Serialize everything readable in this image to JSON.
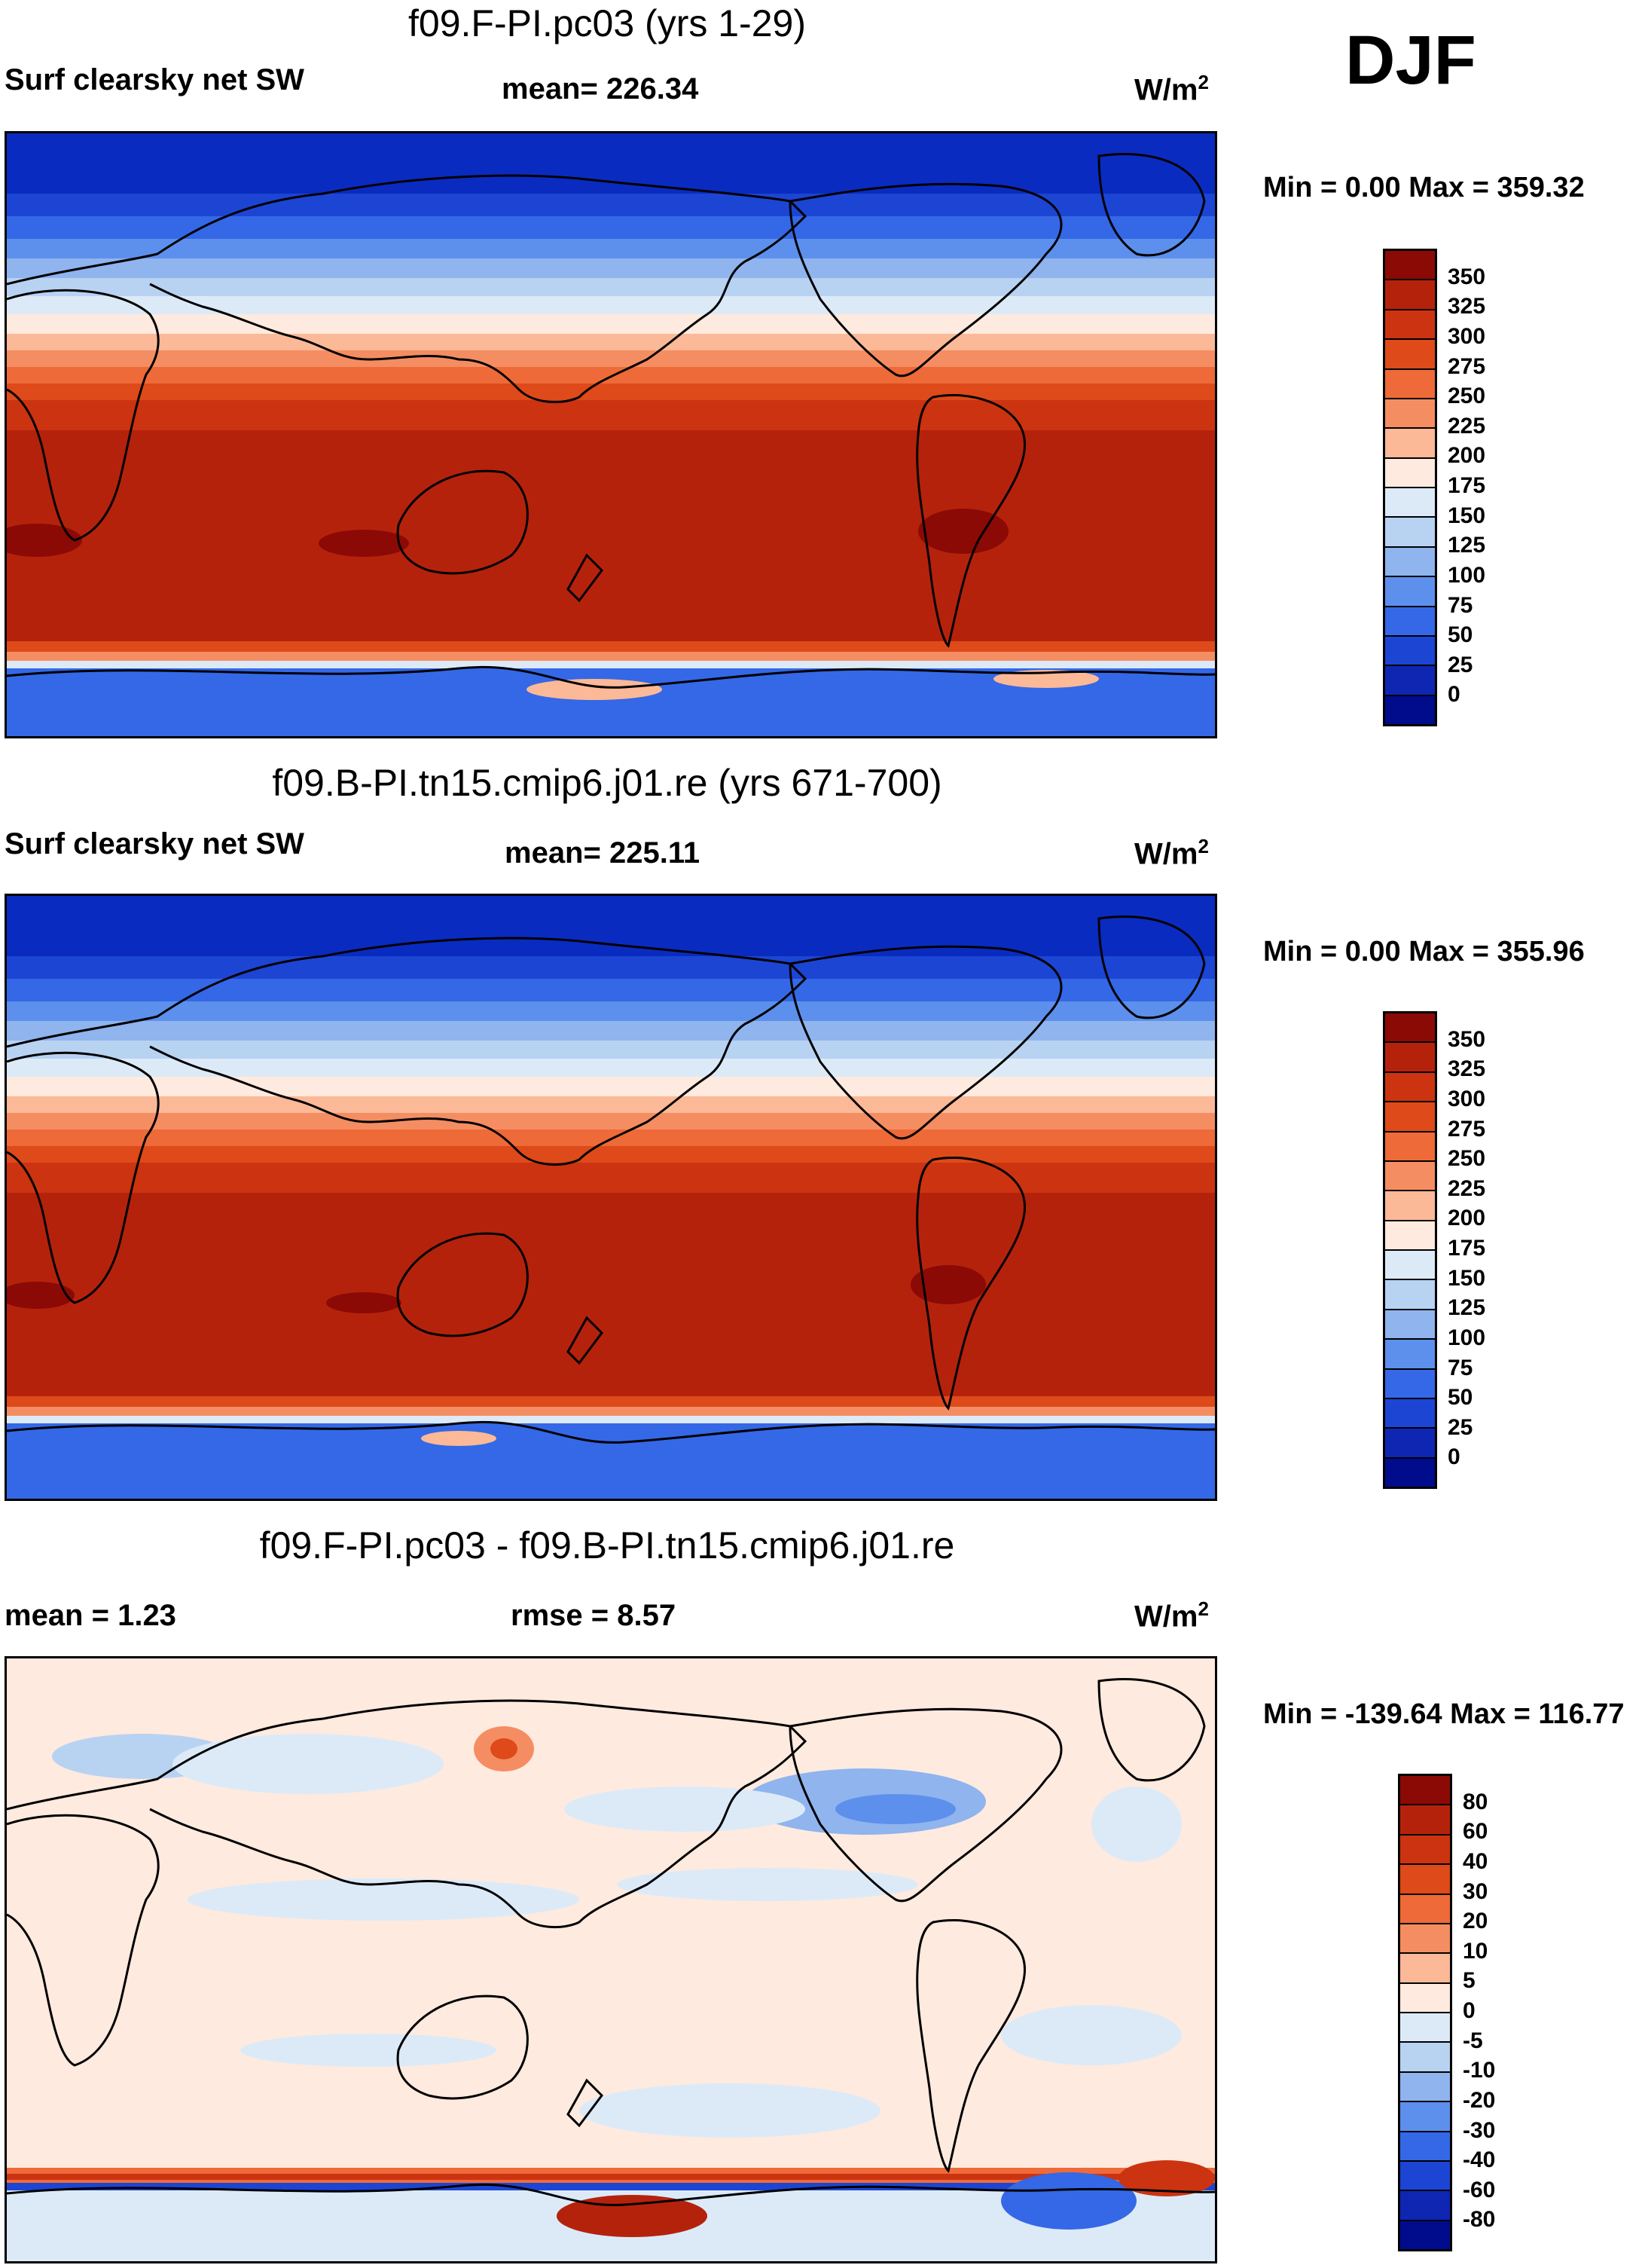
{
  "season": "DJF",
  "panels": [
    {
      "id": "ctrl",
      "title": "f09.F-PI.pc03 (yrs 1-29)",
      "field_label": "Surf clearsky net SW",
      "stat1": "mean= 226.34",
      "stat2": "",
      "units_base": "W/m",
      "units_sup": "2",
      "minmax": "Min =   0.00 Max = 359.32"
    },
    {
      "id": "test",
      "title": "f09.B-PI.tn15.cmip6.j01.re (yrs 671-700)",
      "field_label": "Surf clearsky net SW",
      "stat1": "mean= 225.11",
      "stat2": "",
      "units_base": "W/m",
      "units_sup": "2",
      "minmax": "Min =   0.00 Max = 355.96"
    },
    {
      "id": "diff",
      "title": "f09.F-PI.pc03 - f09.B-PI.tn15.cmip6.j01.re",
      "field_label": "",
      "stat1": "mean =   1.23",
      "stat2": "rmse =   8.57",
      "units_base": "W/m",
      "units_sup": "2",
      "minmax": "Min = -139.64 Max = 116.77"
    }
  ],
  "colorbars": {
    "abs": {
      "labels": [
        "350",
        "325",
        "300",
        "275",
        "250",
        "225",
        "200",
        "175",
        "150",
        "125",
        "100",
        "75",
        "50",
        "25",
        "0"
      ],
      "colors": [
        "#8b0a05",
        "#b5220c",
        "#cc3310",
        "#de4a1a",
        "#ee6a38",
        "#f58d62",
        "#fbb998",
        "#feeadf",
        "#dceaf8",
        "#b8d2f2",
        "#8fb4ee",
        "#5d90ec",
        "#3468e6",
        "#1c45d4",
        "#0f26b2",
        "#000c8c"
      ]
    },
    "diff": {
      "labels": [
        "80",
        "60",
        "40",
        "30",
        "20",
        "10",
        "5",
        "0",
        "-5",
        "-10",
        "-20",
        "-30",
        "-40",
        "-60",
        "-80"
      ],
      "colors": [
        "#8b0a05",
        "#b5220c",
        "#cc3310",
        "#de4a1a",
        "#ee6a38",
        "#f58d62",
        "#fbb998",
        "#feeadf",
        "#dceaf8",
        "#b8d2f2",
        "#8fb4ee",
        "#5d90ec",
        "#3468e6",
        "#1c45d4",
        "#0f26b2",
        "#000c8c"
      ]
    }
  },
  "colors": {
    "polar_dark": "#0a2bbf",
    "polar_mid": "#1c45d4",
    "polar_light": "#5d90ec",
    "pale_blue": "#b8d2f2",
    "neutral": "#feeadf",
    "warm_light": "#fbb998",
    "warm_mid": "#ee6a38",
    "warm_dark": "#cc3310",
    "warm_deep": "#b5220c",
    "deep_red": "#8b0a05"
  }
}
